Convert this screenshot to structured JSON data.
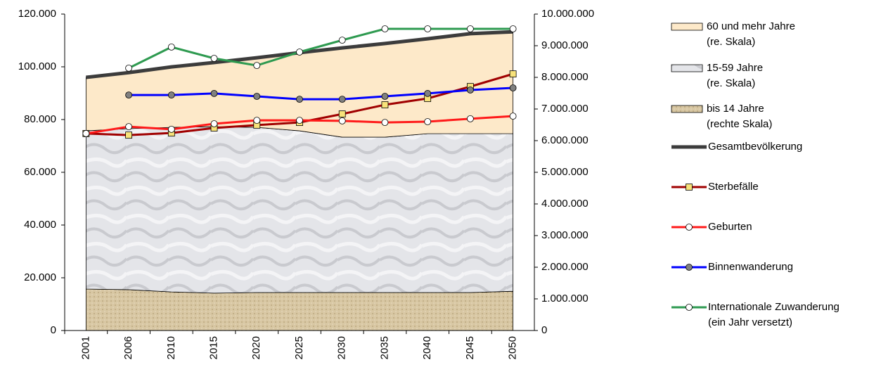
{
  "chart_data": {
    "type": "combo",
    "categories": [
      "2001",
      "2006",
      "2010",
      "2015",
      "2020",
      "2025",
      "2030",
      "2035",
      "2040",
      "2045",
      "2050"
    ],
    "ylim": [
      0,
      120000
    ],
    "yticks": [
      0,
      {
        "value": 20000,
        "label": "20.000"
      },
      {
        "value": 40000,
        "label": "40.000"
      },
      {
        "value": 60000,
        "label": "60.000"
      },
      {
        "value": 80000,
        "label": "80.000"
      },
      {
        "value": 100000,
        "label": "100.000"
      },
      {
        "value": 120000,
        "label": "120.000"
      }
    ],
    "y2lim": [
      0,
      10000000
    ],
    "y2ticks": [
      0,
      {
        "value": 1000000,
        "label": "1.000.000"
      },
      {
        "value": 2000000,
        "label": "2.000.000"
      },
      {
        "value": 3000000,
        "label": "3.000.000"
      },
      {
        "value": 4000000,
        "label": "4.000.000"
      },
      {
        "value": 5000000,
        "label": "5.000.000"
      },
      {
        "value": 6000000,
        "label": "6.000.000"
      },
      {
        "value": 7000000,
        "label": "7.000.000"
      },
      {
        "value": 8000000,
        "label": "8.000.000"
      },
      {
        "value": 9000000,
        "label": "9.000.000"
      },
      {
        "value": 10000000,
        "label": "10.000.000"
      }
    ],
    "legend": "right",
    "series": [
      {
        "name": "bis 14 Jahre\n(rechte Skala)",
        "type": "area",
        "axis": "y2",
        "color": "#d8c7a3",
        "values": [
          1310000,
          1290000,
          1220000,
          1180000,
          1200000,
          1200000,
          1200000,
          1200000,
          1200000,
          1200000,
          1240000
        ]
      },
      {
        "name": "15-59 Jahre\n(re. Skala)",
        "type": "area",
        "axis": "y2",
        "color": "#e2e3e7",
        "values": [
          5000000,
          5090000,
          5200000,
          5260000,
          5220000,
          5110000,
          4910000,
          4910000,
          5020000,
          5020000,
          4980000
        ]
      },
      {
        "name": "60 und mehr Jahre\n(re. Skala)",
        "type": "area",
        "axis": "y2",
        "color": "#fde9c9",
        "values": [
          1690000,
          1770000,
          1910000,
          2030000,
          2200000,
          2470000,
          2820000,
          2960000,
          3000000,
          3160000,
          3220000
        ]
      },
      {
        "name": "Gesamtbevölkerung",
        "type": "line",
        "axis": "y2",
        "color": "#3c3c3c",
        "marker": "none",
        "values": [
          8000000,
          8150000,
          8330000,
          8470000,
          8620000,
          8780000,
          8930000,
          9070000,
          9220000,
          9380000,
          9440000
        ]
      },
      {
        "name": "Sterbefälle",
        "type": "line",
        "color": "#a00000",
        "marker": "square",
        "marker_color": "#f7e27a",
        "values": [
          74700,
          74100,
          74900,
          76800,
          77900,
          78900,
          82100,
          85600,
          88000,
          92500,
          97300
        ]
      },
      {
        "name": "Geburten",
        "type": "line",
        "color": "#ff1a1a",
        "marker": "circle",
        "marker_color": "#ffffff",
        "values": [
          74700,
          77300,
          76300,
          78400,
          79700,
          79700,
          79500,
          78900,
          79200,
          80300,
          81300
        ]
      },
      {
        "name": "Binnenwanderung",
        "type": "line",
        "color": "#0000ff",
        "marker": "circle",
        "marker_color": "#808080",
        "values": [
          null,
          89300,
          89300,
          89900,
          88800,
          87700,
          87700,
          88800,
          89900,
          91200,
          92000
        ]
      },
      {
        "name": "Internationale Zuwanderung\n(ein Jahr versetzt)",
        "type": "line",
        "color": "#2e9a50",
        "marker": "circle",
        "marker_color": "#ffffff",
        "values": [
          null,
          99500,
          107500,
          103200,
          100500,
          105600,
          110100,
          114400,
          114400,
          114400,
          114400
        ]
      }
    ],
    "legend_order": [
      2,
      1,
      0,
      3,
      4,
      5,
      6,
      7
    ]
  }
}
